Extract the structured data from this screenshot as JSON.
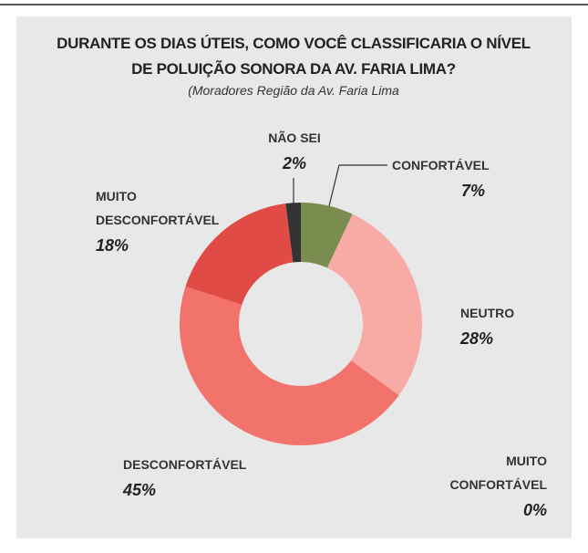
{
  "chart_data": {
    "type": "donut",
    "title": "DURANTE OS DIAS ÚTEIS, COMO VOCÊ CLASSIFICARIA O NÍVEL DE POLUIÇÃO SONORA DA AV. FARIA LIMA?",
    "subtitle": "(Moradores Região da Av. Faria Lima",
    "categories": [
      "CONFORTÁVEL",
      "NEUTRO",
      "DESCONFORTÁVEL",
      "MUITO DESCONFORTÁVEL",
      "NÃO SEI",
      "MUITO CONFORTÁVEL"
    ],
    "values": [
      7,
      28,
      45,
      18,
      2,
      0
    ],
    "value_labels": [
      "7%",
      "28%",
      "45%",
      "18%",
      "2%",
      "0%"
    ],
    "colors": [
      "#7b8c4f",
      "#f8aba5",
      "#f2736b",
      "#e14b46",
      "#333333",
      "#9bb36a"
    ]
  }
}
